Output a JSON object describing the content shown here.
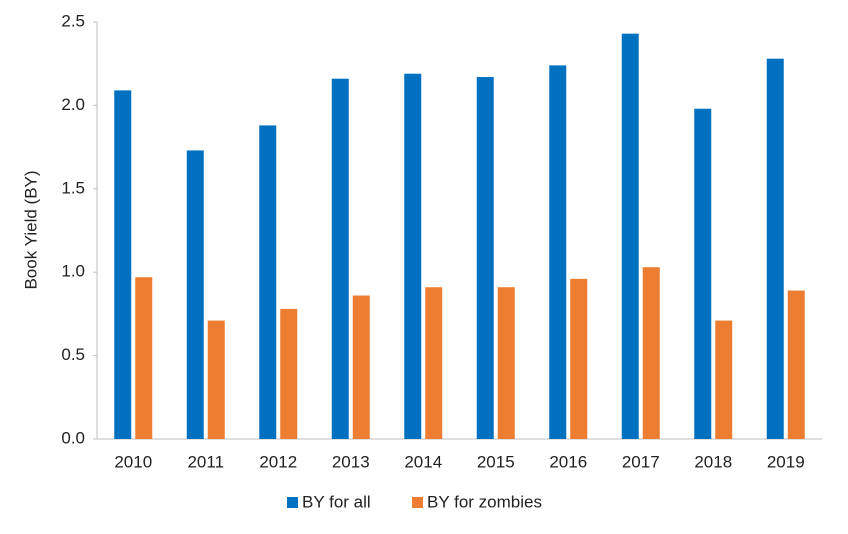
{
  "chart_data": {
    "type": "bar",
    "categories": [
      "2010",
      "2011",
      "2012",
      "2013",
      "2014",
      "2015",
      "2016",
      "2017",
      "2018",
      "2019"
    ],
    "series": [
      {
        "name": "BY for all",
        "color": "#0070c0",
        "values": [
          2.09,
          1.73,
          1.88,
          2.16,
          2.19,
          2.17,
          2.24,
          2.43,
          1.98,
          2.28
        ]
      },
      {
        "name": "BY for zombies",
        "color": "#ed7d31",
        "values": [
          0.97,
          0.71,
          0.78,
          0.86,
          0.91,
          0.91,
          0.96,
          1.03,
          0.71,
          0.89
        ]
      }
    ],
    "y_label": "Book Yield (BY)",
    "ylim": [
      0,
      2.5
    ],
    "yticks": [
      {
        "value": 0,
        "label": "0.0"
      },
      0.5,
      {
        "value": 1,
        "label": "1.0"
      },
      1.5,
      {
        "value": 2,
        "label": "2.0"
      },
      2.5
    ],
    "grid": false,
    "legend": "bottom"
  }
}
